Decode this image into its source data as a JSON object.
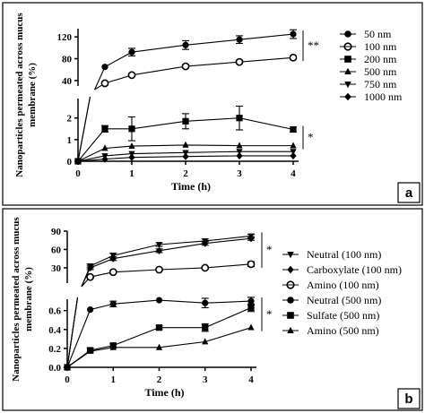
{
  "chart_data": [
    {
      "panel_label": "a",
      "type": "line",
      "xlabel": "Time (h)",
      "ylabel": "Nanoparticles permeated across mucus membrane (%)",
      "x_ticks": [
        "0",
        "1",
        "2",
        "3",
        "4"
      ],
      "y_ticks_upper": [
        "40",
        "80",
        "120"
      ],
      "y_ticks_lower": [
        "0",
        "1",
        "2"
      ],
      "ylim_upper": [
        30,
        135
      ],
      "ylim_lower": [
        0,
        2.9
      ],
      "y_axis_break": true,
      "legend_position": "right",
      "significance": [
        {
          "label": "**",
          "spans": [
            "50 nm",
            "100 nm"
          ]
        },
        {
          "label": "*",
          "spans": [
            "200 nm",
            "500 nm"
          ]
        }
      ],
      "series": [
        {
          "name": "50 nm",
          "marker": "circle-filled",
          "x": [
            0,
            0.5,
            1,
            2,
            3,
            4
          ],
          "y": [
            0,
            65,
            92,
            105,
            115,
            125
          ],
          "err": [
            0,
            0,
            7,
            8,
            7,
            8
          ]
        },
        {
          "name": "100 nm",
          "marker": "circle-open",
          "x": [
            0,
            0.5,
            1,
            2,
            3,
            4
          ],
          "y": [
            0,
            35,
            50,
            66,
            74,
            82
          ],
          "err": [
            0,
            3,
            3,
            3,
            3,
            3
          ]
        },
        {
          "name": "200 nm",
          "marker": "square",
          "x": [
            0,
            0.5,
            1,
            2,
            3,
            4
          ],
          "y": [
            0,
            1.5,
            1.5,
            1.85,
            2.0,
            1.47
          ],
          "err": [
            0,
            0.15,
            0.55,
            0.35,
            0.55,
            0.12
          ]
        },
        {
          "name": "500 nm",
          "marker": "triangle-up",
          "x": [
            0,
            0.5,
            1,
            2,
            3,
            4
          ],
          "y": [
            0,
            0.6,
            0.7,
            0.75,
            0.72,
            0.72
          ],
          "err": [
            0,
            0,
            0,
            0,
            0,
            0
          ]
        },
        {
          "name": "750 nm",
          "marker": "triangle-down",
          "x": [
            0,
            0.5,
            1,
            2,
            3,
            4
          ],
          "y": [
            0,
            0.25,
            0.35,
            0.4,
            0.45,
            0.45
          ],
          "err": [
            0,
            0,
            0,
            0,
            0,
            0
          ]
        },
        {
          "name": "1000 nm",
          "marker": "diamond",
          "x": [
            0,
            0.5,
            1,
            2,
            3,
            4
          ],
          "y": [
            0,
            0.1,
            0.18,
            0.22,
            0.25,
            0.25
          ],
          "err": [
            0,
            0,
            0,
            0,
            0,
            0
          ]
        }
      ]
    },
    {
      "panel_label": "b",
      "type": "line",
      "xlabel": "Time (h)",
      "ylabel": "Nanoparticles permeated across mucus membrane (%)",
      "x_ticks": [
        "0",
        "1",
        "2",
        "3",
        "4"
      ],
      "y_ticks_upper": [
        "30",
        "60",
        "90"
      ],
      "y_ticks_lower": [
        "0.0",
        "0.2",
        "0.4",
        "0.6"
      ],
      "ylim_upper": [
        5,
        90
      ],
      "ylim_lower": [
        0,
        0.72
      ],
      "y_axis_break": true,
      "legend_position": "right",
      "significance": [
        {
          "label": "*",
          "spans": [
            "Neutral (100 nm)",
            "Amino (100 nm)"
          ]
        },
        {
          "label": "*",
          "spans": [
            "Neutral (500 nm)",
            "Amino (500 nm)"
          ]
        }
      ],
      "series": [
        {
          "name": "Neutral (100 nm)",
          "marker": "triangle-down",
          "x": [
            0,
            0.5,
            1,
            2,
            3,
            4
          ],
          "y": [
            0,
            33,
            50,
            68,
            74,
            82
          ],
          "err": [
            0,
            3,
            4,
            3,
            3,
            3
          ]
        },
        {
          "name": "Carboxylate (100 nm)",
          "marker": "diamond",
          "x": [
            0,
            0.5,
            1,
            2,
            3,
            4
          ],
          "y": [
            0,
            30,
            45,
            58,
            70,
            78
          ],
          "err": [
            0,
            3,
            3,
            3,
            3,
            3
          ]
        },
        {
          "name": "Amino (100 nm)",
          "marker": "circle-open",
          "x": [
            0,
            0.5,
            1,
            2,
            3,
            4
          ],
          "y": [
            0,
            15,
            23,
            27,
            30,
            36
          ],
          "err": [
            0,
            2,
            2,
            2,
            2,
            4
          ]
        },
        {
          "name": "Neutral (500 nm)",
          "marker": "circle-filled",
          "x": [
            0,
            0.5,
            1,
            2,
            3,
            4
          ],
          "y": [
            0,
            0.61,
            0.67,
            0.71,
            0.68,
            0.7
          ],
          "err": [
            0,
            0,
            0.03,
            0,
            0.05,
            0.04
          ]
        },
        {
          "name": "Sulfate (500 nm)",
          "marker": "square",
          "x": [
            0,
            0.5,
            1,
            2,
            3,
            4
          ],
          "y": [
            0,
            0.18,
            0.23,
            0.42,
            0.42,
            0.63
          ],
          "err": [
            0,
            0.02,
            0.02,
            0.02,
            0.04,
            0.04
          ]
        },
        {
          "name": "Amino (500 nm)",
          "marker": "triangle-up",
          "x": [
            0,
            0.5,
            1,
            2,
            3,
            4
          ],
          "y": [
            0,
            0.17,
            0.21,
            0.21,
            0.27,
            0.42
          ],
          "err": [
            0,
            0,
            0,
            0,
            0,
            0
          ]
        }
      ]
    }
  ]
}
